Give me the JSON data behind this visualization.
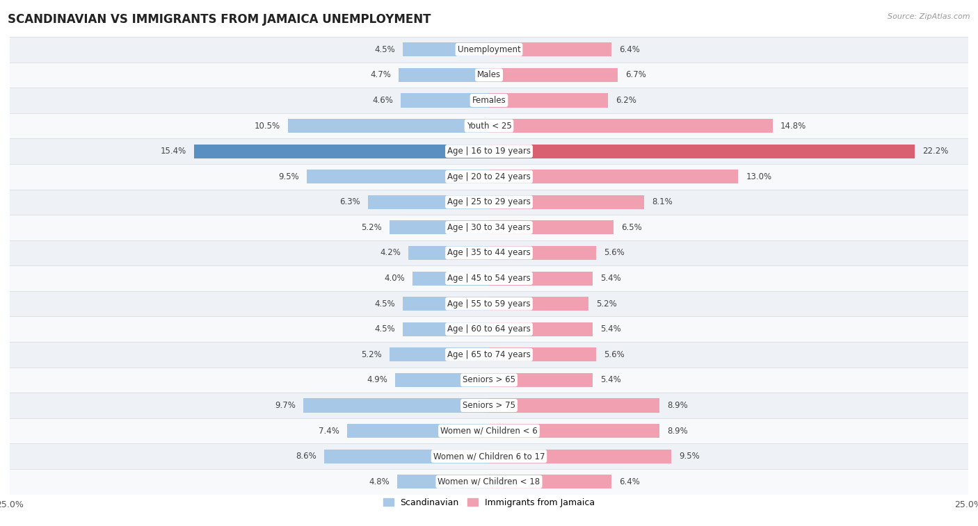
{
  "title": "SCANDINAVIAN VS IMMIGRANTS FROM JAMAICA UNEMPLOYMENT",
  "source": "Source: ZipAtlas.com",
  "categories": [
    "Unemployment",
    "Males",
    "Females",
    "Youth < 25",
    "Age | 16 to 19 years",
    "Age | 20 to 24 years",
    "Age | 25 to 29 years",
    "Age | 30 to 34 years",
    "Age | 35 to 44 years",
    "Age | 45 to 54 years",
    "Age | 55 to 59 years",
    "Age | 60 to 64 years",
    "Age | 65 to 74 years",
    "Seniors > 65",
    "Seniors > 75",
    "Women w/ Children < 6",
    "Women w/ Children 6 to 17",
    "Women w/ Children < 18"
  ],
  "scandinavian": [
    4.5,
    4.7,
    4.6,
    10.5,
    15.4,
    9.5,
    6.3,
    5.2,
    4.2,
    4.0,
    4.5,
    4.5,
    5.2,
    4.9,
    9.7,
    7.4,
    8.6,
    4.8
  ],
  "jamaica": [
    6.4,
    6.7,
    6.2,
    14.8,
    22.2,
    13.0,
    8.1,
    6.5,
    5.6,
    5.4,
    5.2,
    5.4,
    5.6,
    5.4,
    8.9,
    8.9,
    9.5,
    6.4
  ],
  "scandinavian_color": "#a8c8e8",
  "jamaica_color": "#f0a0b0",
  "highlight_scand_color": "#5a8fc2",
  "highlight_jamaica_color": "#d96070",
  "row_bg_even": "#eef2f6",
  "row_bg_odd": "#f8f9fb",
  "bar_height": 0.55,
  "xlim": 25.0,
  "legend_scand": "Scandinavian",
  "legend_jamaica": "Immigrants from Jamaica",
  "value_fontsize": 8.5,
  "label_fontsize": 8.5
}
